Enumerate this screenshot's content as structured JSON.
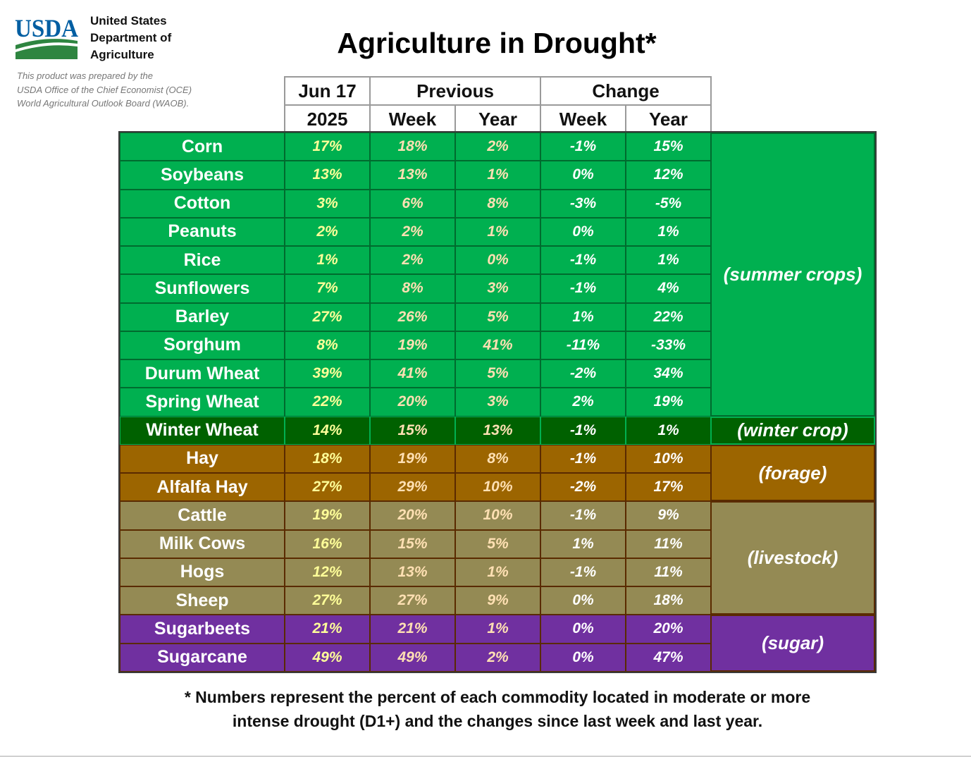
{
  "logo_text": "USDA",
  "org_lines": [
    "United States",
    "Department of",
    "Agriculture"
  ],
  "credit_lines": [
    "This product was prepared by the",
    "USDA Office of the Chief Economist (OCE)",
    "World Agricultural Outlook Board (WAOB)."
  ],
  "colors": {
    "summer": "#00b050",
    "winter": "#006100",
    "forage": "#9c6500",
    "livestock": "#948a54",
    "sugar": "#7030a0",
    "current_text": "#ffff99",
    "previous_text": "#ffe0b3",
    "change_text": "#ffffff",
    "header_border": "#9a9a9a",
    "logo_blue": "#005ea2",
    "logo_green": "#2e8540"
  },
  "chart_data": {
    "type": "table",
    "title": "Agriculture in Drought*",
    "header": {
      "top": [
        "Jun 17",
        "Previous",
        "Change"
      ],
      "sub": [
        "2025",
        "Week",
        "Year",
        "Week",
        "Year"
      ]
    },
    "columns": [
      "Jun 17 2025",
      "Previous Week",
      "Previous Year",
      "Change Week",
      "Change Year"
    ],
    "groups": [
      {
        "label": "(summer crops)",
        "color_key": "summer",
        "rows": [
          {
            "name": "Corn",
            "values": [
              "17%",
              "18%",
              "2%",
              "-1%",
              "15%"
            ]
          },
          {
            "name": "Soybeans",
            "values": [
              "13%",
              "13%",
              "1%",
              "0%",
              "12%"
            ]
          },
          {
            "name": "Cotton",
            "values": [
              "3%",
              "6%",
              "8%",
              "-3%",
              "-5%"
            ]
          },
          {
            "name": "Peanuts",
            "values": [
              "2%",
              "2%",
              "1%",
              "0%",
              "1%"
            ]
          },
          {
            "name": "Rice",
            "values": [
              "1%",
              "2%",
              "0%",
              "-1%",
              "1%"
            ]
          },
          {
            "name": "Sunflowers",
            "values": [
              "7%",
              "8%",
              "3%",
              "-1%",
              "4%"
            ]
          },
          {
            "name": "Barley",
            "values": [
              "27%",
              "26%",
              "5%",
              "1%",
              "22%"
            ]
          },
          {
            "name": "Sorghum",
            "values": [
              "8%",
              "19%",
              "41%",
              "-11%",
              "-33%"
            ]
          },
          {
            "name": "Durum Wheat",
            "values": [
              "39%",
              "41%",
              "5%",
              "-2%",
              "34%"
            ]
          },
          {
            "name": "Spring Wheat",
            "values": [
              "22%",
              "20%",
              "3%",
              "2%",
              "19%"
            ]
          }
        ]
      },
      {
        "label": "(winter crop)",
        "color_key": "winter",
        "rows": [
          {
            "name": "Winter Wheat",
            "values": [
              "14%",
              "15%",
              "13%",
              "-1%",
              "1%"
            ]
          }
        ]
      },
      {
        "label": "(forage)",
        "color_key": "forage",
        "rows": [
          {
            "name": "Hay",
            "values": [
              "18%",
              "19%",
              "8%",
              "-1%",
              "10%"
            ]
          },
          {
            "name": "Alfalfa Hay",
            "values": [
              "27%",
              "29%",
              "10%",
              "-2%",
              "17%"
            ]
          }
        ]
      },
      {
        "label": "(livestock)",
        "color_key": "livestock",
        "rows": [
          {
            "name": "Cattle",
            "values": [
              "19%",
              "20%",
              "10%",
              "-1%",
              "9%"
            ]
          },
          {
            "name": "Milk Cows",
            "values": [
              "16%",
              "15%",
              "5%",
              "1%",
              "11%"
            ]
          },
          {
            "name": "Hogs",
            "values": [
              "12%",
              "13%",
              "1%",
              "-1%",
              "11%"
            ]
          },
          {
            "name": "Sheep",
            "values": [
              "27%",
              "27%",
              "9%",
              "0%",
              "18%"
            ]
          }
        ]
      },
      {
        "label": "(sugar)",
        "color_key": "sugar",
        "rows": [
          {
            "name": "Sugarbeets",
            "values": [
              "21%",
              "21%",
              "1%",
              "0%",
              "20%"
            ]
          },
          {
            "name": "Sugarcane",
            "values": [
              "49%",
              "49%",
              "2%",
              "0%",
              "47%"
            ]
          }
        ]
      }
    ],
    "footnote_lines": [
      "* Numbers represent the percent of each commodity located in moderate or more",
      "intense drought (D1+) and the changes since last week and last year."
    ]
  }
}
